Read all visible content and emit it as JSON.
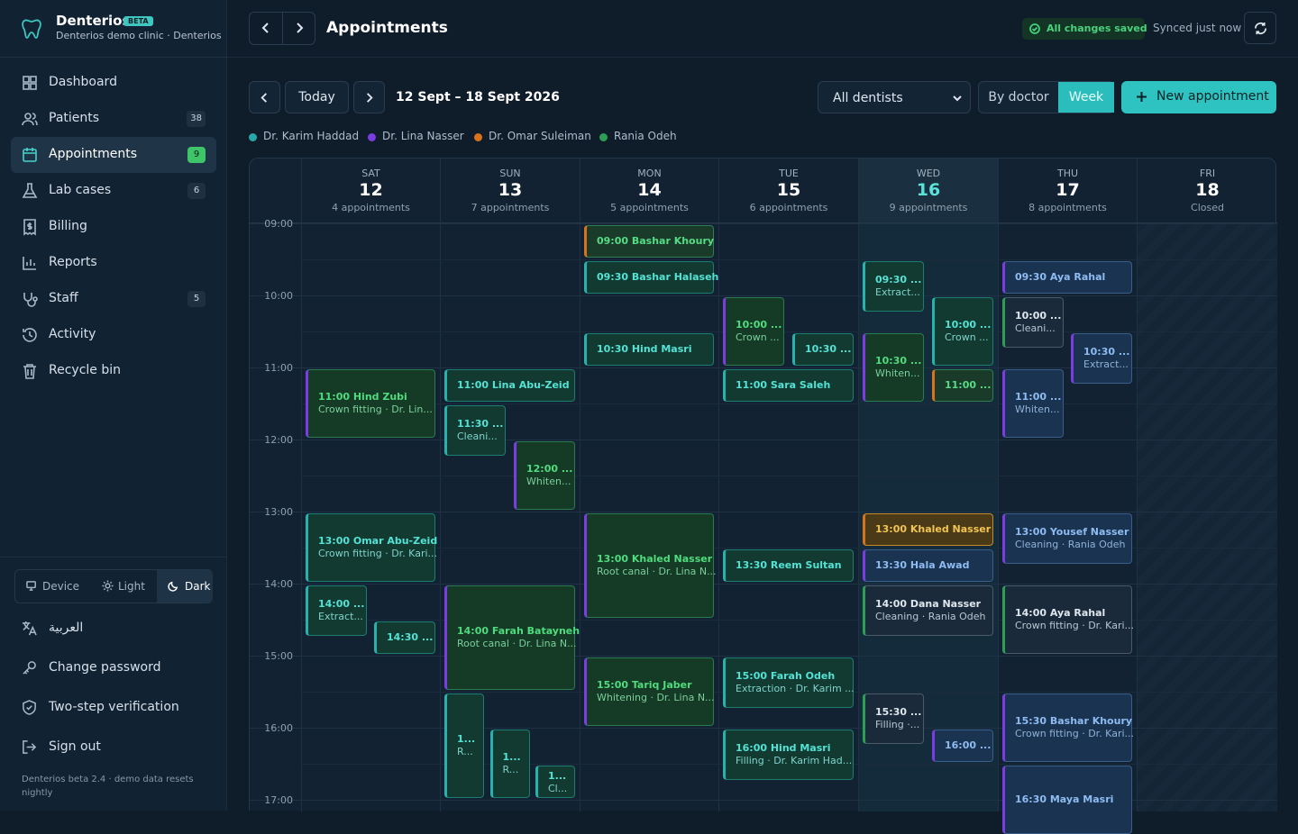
{
  "app": {
    "name": "Denterios",
    "badge": "BETA",
    "clinic": "Denterios demo clinic · Denterios"
  },
  "nav": [
    {
      "label": "Dashboard",
      "icon": "dashboard-icon",
      "count": ""
    },
    {
      "label": "Patients",
      "icon": "users-icon",
      "count": "38"
    },
    {
      "label": "Appointments",
      "icon": "calendar-icon",
      "count": "9",
      "active": true
    },
    {
      "label": "Lab cases",
      "icon": "flask-icon",
      "count": "6"
    },
    {
      "label": "Billing",
      "icon": "receipt-icon",
      "count": ""
    },
    {
      "label": "Reports",
      "icon": "chart-icon",
      "count": ""
    },
    {
      "label": "Staff",
      "icon": "stethoscope-icon",
      "count": "5"
    },
    {
      "label": "Activity",
      "icon": "history-icon",
      "count": ""
    },
    {
      "label": "Recycle bin",
      "icon": "trash-icon",
      "count": ""
    }
  ],
  "theme": {
    "device": "Device",
    "light": "Light",
    "dark": "Dark",
    "selected": "Dark"
  },
  "bottom_links": {
    "language": "العربية",
    "password": "Change password",
    "twofa": "Two-step verification",
    "signout": "Sign out"
  },
  "version": "Denterios beta 2.4 · demo data resets nightly",
  "header": {
    "title": "Appointments",
    "saved": "All changes saved",
    "synced": "Synced just now"
  },
  "toolbar": {
    "today": "Today",
    "range": "12 Sept – 18 Sept 2026",
    "dentist_filter": "All dentists",
    "by_doctor": "By doctor",
    "week": "Week",
    "new_appointment": "New appointment"
  },
  "legend": [
    {
      "name": "Dr. Karim Haddad",
      "color": "#2aa7a8"
    },
    {
      "name": "Dr. Lina Nasser",
      "color": "#7b3ce0"
    },
    {
      "name": "Dr. Omar Suleiman",
      "color": "#d8731b"
    },
    {
      "name": "Rania Odeh",
      "color": "#2e9e55"
    }
  ],
  "days": [
    {
      "dow": "SAT",
      "num": "12",
      "count": "4 appointments"
    },
    {
      "dow": "SUN",
      "num": "13",
      "count": "7 appointments"
    },
    {
      "dow": "MON",
      "num": "14",
      "count": "5 appointments"
    },
    {
      "dow": "TUE",
      "num": "15",
      "count": "6 appointments"
    },
    {
      "dow": "WED",
      "num": "16",
      "count": "9 appointments",
      "today": true
    },
    {
      "dow": "THU",
      "num": "17",
      "count": "8 appointments"
    },
    {
      "dow": "FRI",
      "num": "18",
      "count": "Closed",
      "closed": true
    }
  ],
  "hours": [
    "09:00",
    "10:00",
    "11:00",
    "12:00",
    "13:00",
    "14:00",
    "15:00",
    "16:00",
    "17:00"
  ],
  "appointments": [
    {
      "day": 0,
      "start": "11:00",
      "end": "12:00",
      "slot": 0,
      "of": 1,
      "t1": "11:00 Hind Zubi",
      "t2": "Crown fitting · Dr. Lin...",
      "style": "l"
    },
    {
      "day": 0,
      "start": "13:00",
      "end": "14:00",
      "slot": 0,
      "of": 1,
      "t1": "13:00 Omar Abu-Zeid",
      "t2": "Crown fitting · Dr. Kari...",
      "style": "k"
    },
    {
      "day": 0,
      "start": "14:00",
      "end": "14:45",
      "slot": 0,
      "of": 2,
      "t1": "14:00 ...",
      "t2": "Extract...",
      "style": "k"
    },
    {
      "day": 0,
      "start": "14:30",
      "end": "15:00",
      "slot": 1,
      "of": 2,
      "t1": "14:30 ...",
      "t2": "",
      "style": "k"
    },
    {
      "day": 1,
      "start": "11:00",
      "end": "11:30",
      "slot": 0,
      "of": 1,
      "t1": "11:00 Lina Abu-Zeid",
      "t2": "",
      "style": "k"
    },
    {
      "day": 1,
      "start": "11:30",
      "end": "12:15",
      "slot": 0,
      "of": 2,
      "t1": "11:30 ...",
      "t2": "Cleani...",
      "style": "k"
    },
    {
      "day": 1,
      "start": "12:00",
      "end": "13:00",
      "slot": 1,
      "of": 2,
      "t1": "12:00 ...",
      "t2": "Whiten...",
      "style": "l"
    },
    {
      "day": 1,
      "start": "14:00",
      "end": "15:30",
      "slot": 0,
      "of": 1,
      "t1": "14:00 Farah Batayneh",
      "t2": "Root canal · Dr. Lina N...",
      "style": "l"
    },
    {
      "day": 1,
      "start": "15:30",
      "end": "17:00",
      "slot": 0,
      "of": 3,
      "t1": "1...",
      "t2": "R...",
      "style": "k"
    },
    {
      "day": 1,
      "start": "16:00",
      "end": "17:00",
      "slot": 1,
      "of": 3,
      "t1": "1...",
      "t2": "R...",
      "style": "k"
    },
    {
      "day": 1,
      "start": "16:30",
      "end": "17:00",
      "slot": 2,
      "of": 3,
      "t1": "1...",
      "t2": "Cl...",
      "style": "k"
    },
    {
      "day": 2,
      "start": "09:00",
      "end": "09:30",
      "slot": 0,
      "of": 1,
      "t1": "09:00 Bashar Khoury",
      "t2": "",
      "style": "o"
    },
    {
      "day": 2,
      "start": "09:30",
      "end": "10:00",
      "slot": 0,
      "of": 1,
      "t1": "09:30 Bashar Halaseh",
      "t2": "",
      "style": "k"
    },
    {
      "day": 2,
      "start": "10:30",
      "end": "11:00",
      "slot": 0,
      "of": 1,
      "t1": "10:30 Hind Masri",
      "t2": "",
      "style": "k"
    },
    {
      "day": 2,
      "start": "13:00",
      "end": "14:30",
      "slot": 0,
      "of": 1,
      "t1": "13:00 Khaled Nasser",
      "t2": "Root canal · Dr. Lina N...",
      "style": "l"
    },
    {
      "day": 2,
      "start": "15:00",
      "end": "16:00",
      "slot": 0,
      "of": 1,
      "t1": "15:00 Tariq Jaber",
      "t2": "Whitening · Dr. Lina N...",
      "style": "l"
    },
    {
      "day": 3,
      "start": "10:00",
      "end": "11:00",
      "slot": 0,
      "of": 2,
      "t1": "10:00 ...",
      "t2": "Crown ...",
      "style": "l"
    },
    {
      "day": 3,
      "start": "10:30",
      "end": "11:00",
      "slot": 1,
      "of": 2,
      "t1": "10:30 ...",
      "t2": "",
      "style": "k"
    },
    {
      "day": 3,
      "start": "11:00",
      "end": "11:30",
      "slot": 0,
      "of": 1,
      "t1": "11:00 Sara Saleh",
      "t2": "",
      "style": "k"
    },
    {
      "day": 3,
      "start": "13:30",
      "end": "14:00",
      "slot": 0,
      "of": 1,
      "t1": "13:30 Reem Sultan",
      "t2": "",
      "style": "k"
    },
    {
      "day": 3,
      "start": "15:00",
      "end": "15:45",
      "slot": 0,
      "of": 1,
      "t1": "15:00 Farah Odeh",
      "t2": "Extraction · Dr. Karim ...",
      "style": "k"
    },
    {
      "day": 3,
      "start": "16:00",
      "end": "16:45",
      "slot": 0,
      "of": 1,
      "t1": "16:00 Hind Masri",
      "t2": "Filling · Dr. Karim Had...",
      "style": "k"
    },
    {
      "day": 4,
      "start": "09:30",
      "end": "10:15",
      "slot": 0,
      "of": 2,
      "t1": "09:30 ...",
      "t2": "Extract...",
      "style": "k"
    },
    {
      "day": 4,
      "start": "10:00",
      "end": "11:00",
      "slot": 1,
      "of": 2,
      "t1": "10:00 ...",
      "t2": "Crown ...",
      "style": "k"
    },
    {
      "day": 4,
      "start": "10:30",
      "end": "11:30",
      "slot": 0,
      "of": 2,
      "t1": "10:30 ...",
      "t2": "Whiten...",
      "style": "l"
    },
    {
      "day": 4,
      "start": "11:00",
      "end": "11:30",
      "slot": 1,
      "of": 2,
      "t1": "11:00 ...",
      "t2": "",
      "style": "o"
    },
    {
      "day": 4,
      "start": "13:00",
      "end": "13:30",
      "slot": 0,
      "of": 1,
      "t1": "13:00 Khaled Nasser",
      "t2": "",
      "style": "y"
    },
    {
      "day": 4,
      "start": "13:30",
      "end": "14:00",
      "slot": 0,
      "of": 1,
      "t1": "13:30 Hala Awad",
      "t2": "",
      "style": "b"
    },
    {
      "day": 4,
      "start": "14:00",
      "end": "14:45",
      "slot": 0,
      "of": 1,
      "t1": "14:00 Dana Nasser",
      "t2": "Cleaning · Rania Odeh",
      "style": "r"
    },
    {
      "day": 4,
      "start": "15:30",
      "end": "16:15",
      "slot": 0,
      "of": 2,
      "t1": "15:30 ...",
      "t2": "Filling ·...",
      "style": "r"
    },
    {
      "day": 4,
      "start": "16:00",
      "end": "16:30",
      "slot": 1,
      "of": 2,
      "t1": "16:00 ...",
      "t2": "",
      "style": "b"
    },
    {
      "day": 5,
      "start": "09:30",
      "end": "10:00",
      "slot": 0,
      "of": 1,
      "t1": "09:30 Aya Rahal",
      "t2": "",
      "style": "b"
    },
    {
      "day": 5,
      "start": "10:00",
      "end": "10:45",
      "slot": 0,
      "of": 2,
      "t1": "10:00 ...",
      "t2": "Cleani...",
      "style": "r"
    },
    {
      "day": 5,
      "start": "10:30",
      "end": "11:15",
      "slot": 1,
      "of": 2,
      "t1": "10:30 ...",
      "t2": "Extract...",
      "style": "b"
    },
    {
      "day": 5,
      "start": "11:00",
      "end": "12:00",
      "slot": 0,
      "of": 2,
      "t1": "11:00 ...",
      "t2": "Whiten...",
      "style": "b"
    },
    {
      "day": 5,
      "start": "13:00",
      "end": "13:45",
      "slot": 0,
      "of": 1,
      "t1": "13:00 Yousef Nasser",
      "t2": "Cleaning · Rania Odeh",
      "style": "b"
    },
    {
      "day": 5,
      "start": "14:00",
      "end": "15:00",
      "slot": 0,
      "of": 1,
      "t1": "14:00 Aya Rahal",
      "t2": "Crown fitting · Dr. Kari...",
      "style": "r"
    },
    {
      "day": 5,
      "start": "15:30",
      "end": "16:30",
      "slot": 0,
      "of": 1,
      "t1": "15:30 Bashar Khoury",
      "t2": "Crown fitting · Dr. Kari...",
      "style": "b"
    },
    {
      "day": 5,
      "start": "16:30",
      "end": "17:30",
      "slot": 0,
      "of": 1,
      "t1": "16:30 Maya Masri",
      "t2": "",
      "style": "b"
    }
  ]
}
